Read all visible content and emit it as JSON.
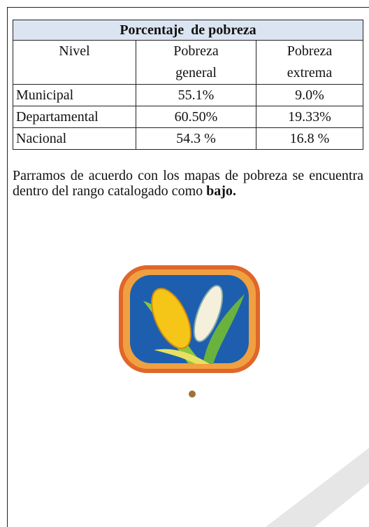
{
  "table": {
    "title": "Porcentaje  de pobreza",
    "header": [
      "Nivel",
      "Pobreza general",
      "Pobreza extrema"
    ],
    "rows": [
      [
        "Municipal",
        "55.1%",
        "9.0%"
      ],
      [
        "Departamental",
        "60.50%",
        "19.33%"
      ],
      [
        "Nacional",
        "54.3 %",
        "16.8 %"
      ]
    ]
  },
  "paragraph": {
    "text": "Parramos de acuerdo con los mapas de pobreza se encuentra dentro del rango catalogado como ",
    "bold": "bajo."
  }
}
